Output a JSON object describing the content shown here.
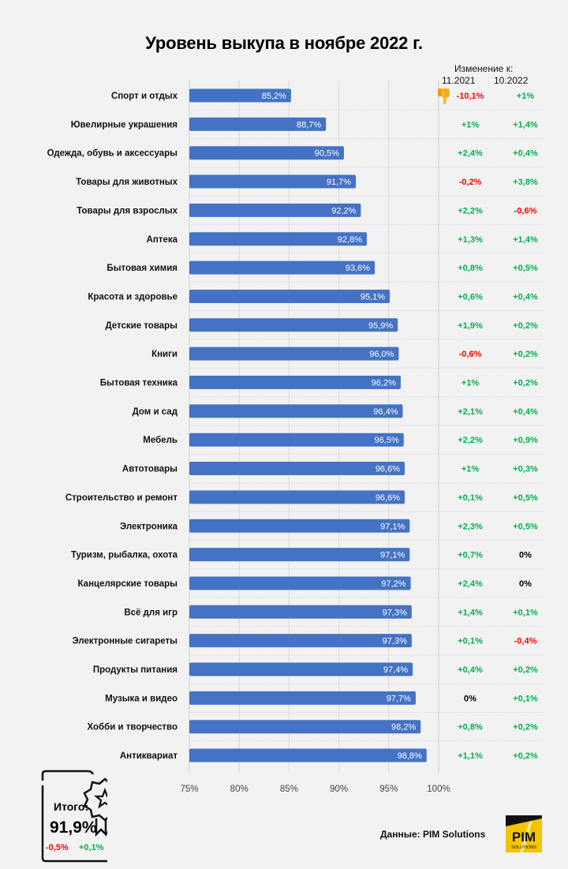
{
  "chart_data": {
    "type": "bar",
    "orientation": "horizontal",
    "title": "Уровень выкупа в ноябре 2022 г.",
    "xlabel": "",
    "ylabel": "",
    "xlim": [
      75,
      100
    ],
    "grid": true,
    "x_ticks": [
      "75%",
      "80%",
      "85%",
      "90%",
      "95%",
      "100%"
    ],
    "x_tick_values": [
      75,
      80,
      85,
      90,
      95,
      100
    ],
    "categories": [
      "Спорт и отдых",
      "Ювелирные украшения",
      "Одежда, обувь и аксессуары",
      "Товары для животных",
      "Товары для взрослых",
      "Аптека",
      "Бытовая химия",
      "Красота и здоровье",
      "Детские товары",
      "Книги",
      "Бытовая техника",
      "Дом и сад",
      "Мебель",
      "Автотовары",
      "Строительство и ремонт",
      "Электроника",
      "Туризм, рыбалка, охота",
      "Канцелярские товары",
      "Всё для игр",
      "Электронные сигареты",
      "Продукты питания",
      "Музыка и видео",
      "Хобби и творчество",
      "Антиквариат"
    ],
    "values": [
      85.2,
      88.7,
      90.5,
      91.7,
      92.2,
      92.8,
      93.6,
      95.1,
      95.9,
      96.0,
      96.2,
      96.4,
      96.5,
      96.6,
      96.6,
      97.1,
      97.1,
      97.2,
      97.3,
      97.3,
      97.4,
      97.7,
      98.2,
      98.8
    ],
    "value_labels": [
      "85,2%",
      "88,7%",
      "90,5%",
      "91,7%",
      "92,2%",
      "92,8%",
      "93,6%",
      "95,1%",
      "95,9%",
      "96,0%",
      "96,2%",
      "96,4%",
      "96,5%",
      "96,6%",
      "96,6%",
      "97,1%",
      "97,1%",
      "97,2%",
      "97,3%",
      "97,3%",
      "97,4%",
      "97,7%",
      "98,2%",
      "98,8%"
    ],
    "change_header": "Изменение к:",
    "change_columns": [
      "11.2021",
      "10.2022"
    ],
    "change_vs_11_2021": [
      "-10,1%",
      "+1%",
      "+2,4%",
      "-0,2%",
      "+2,2%",
      "+1,3%",
      "+0,8%",
      "+0,6%",
      "+1,9%",
      "-0,6%",
      "+1%",
      "+2,1%",
      "+2,2%",
      "+1%",
      "+0,1%",
      "+2,3%",
      "+0,7%",
      "+2,4%",
      "+1,4%",
      "+0,1%",
      "+0,4%",
      "0%",
      "+0,8%",
      "+1,1%"
    ],
    "change_vs_10_2022": [
      "+1%",
      "+1,4%",
      "+0,4%",
      "+3,8%",
      "-0,6%",
      "+1,4%",
      "+0,5%",
      "+0,4%",
      "+0,2%",
      "+0,2%",
      "+0,2%",
      "+0,4%",
      "+0,9%",
      "+0,3%",
      "+0,5%",
      "+0,5%",
      "0%",
      "0%",
      "+0,1%",
      "-0,4%",
      "+0,2%",
      "+0,1%",
      "+0,2%",
      "+0,2%"
    ],
    "annotations": [
      {
        "category": "Спорт и отдых",
        "icon": "thumbs-down-icon"
      }
    ]
  },
  "total": {
    "label": "Итого:",
    "value": "91,9%",
    "change_vs_11_2021": "-0,5%",
    "change_vs_10_2022": "+0,1%",
    "icon": "award-ribbon-icon"
  },
  "source": "Данные: PIM Solutions",
  "logo": {
    "text": "PIM",
    "subtext": "SOLUTIONS"
  },
  "colors": {
    "bar": "#4472c4",
    "positive": "#00b050",
    "negative": "#ff0000",
    "neutral": "#000000",
    "background": "#f2f2f2",
    "logo_yellow": "#f5c400"
  }
}
